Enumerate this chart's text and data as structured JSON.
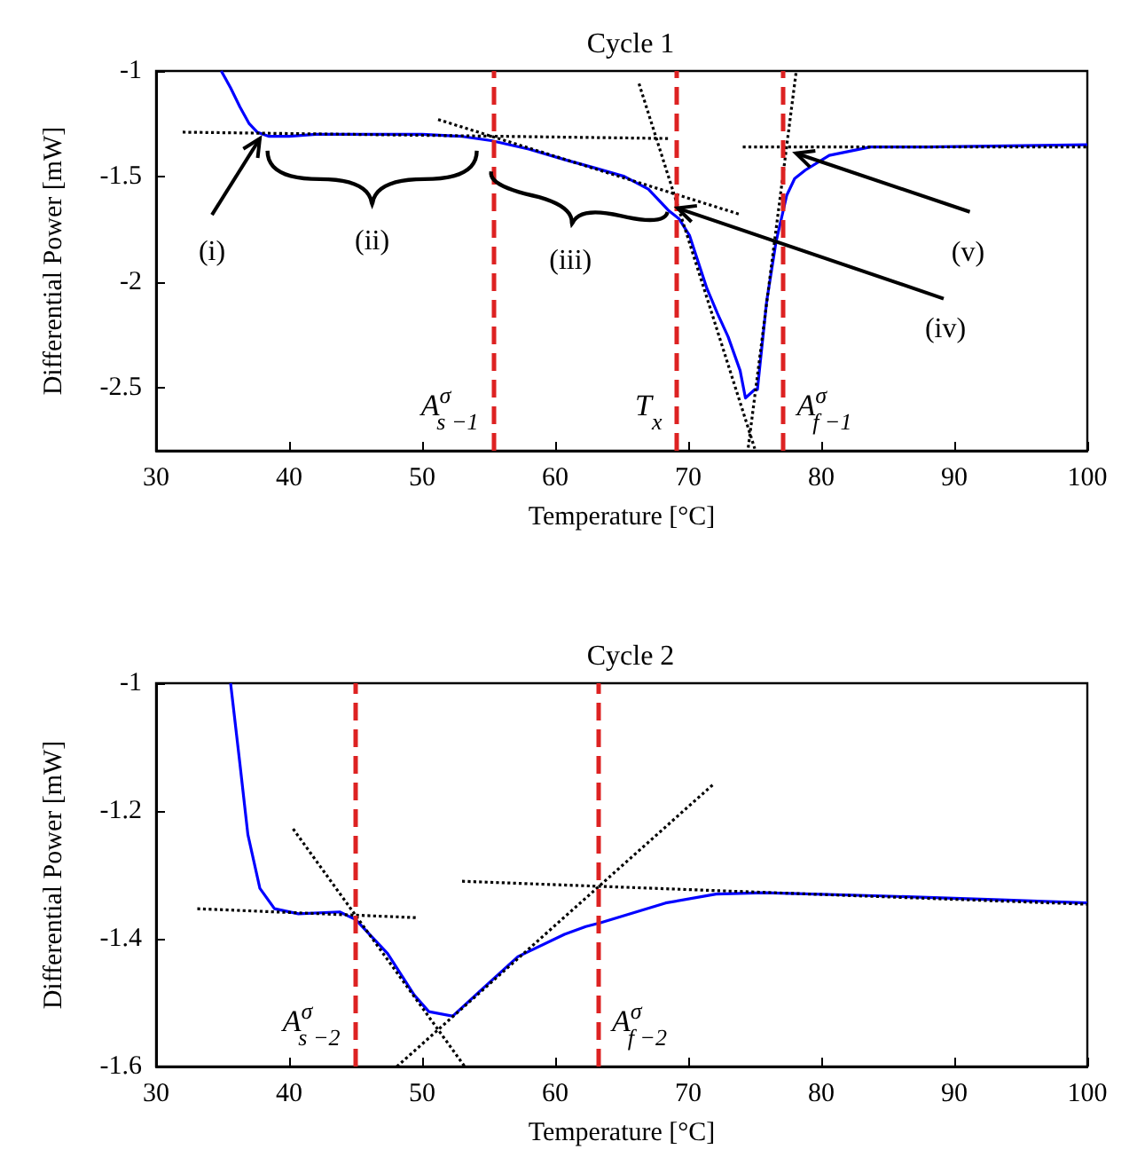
{
  "chart_data": [
    {
      "type": "line",
      "title": "Cycle 1",
      "xlabel": "Temperature [°C]",
      "ylabel": "Differential Power [mW]",
      "xlim": [
        30,
        100
      ],
      "xticks": [
        30,
        40,
        50,
        60,
        70,
        80,
        90,
        100
      ],
      "ylim": [
        -2.8,
        -1
      ],
      "yticks": [
        -1,
        -1.5,
        -2,
        -2.5
      ],
      "series": [
        {
          "color": "#0000ff",
          "x": [
            34.9,
            35.6,
            36.3,
            37.0,
            37.6,
            38.5,
            40,
            42,
            45,
            50,
            53,
            55.2,
            58,
            60.7,
            63,
            65.2,
            67,
            68.5,
            69.3,
            70.1,
            71.4,
            72.2,
            73.0,
            73.9,
            74.3,
            75.0,
            75.2,
            75.9,
            76.6,
            77.4,
            78.0,
            78.8,
            80.6,
            83.7,
            88,
            100
          ],
          "values": [
            -1.0,
            -1.08,
            -1.17,
            -1.25,
            -1.29,
            -1.31,
            -1.31,
            -1.3,
            -1.3,
            -1.3,
            -1.31,
            -1.33,
            -1.37,
            -1.42,
            -1.46,
            -1.5,
            -1.56,
            -1.66,
            -1.7,
            -1.78,
            -2.03,
            -2.15,
            -2.26,
            -2.42,
            -2.55,
            -2.51,
            -2.51,
            -2.09,
            -1.81,
            -1.59,
            -1.51,
            -1.47,
            -1.4,
            -1.36,
            -1.36,
            -1.35
          ]
        },
        {
          "type": "line",
          "color": "#000000",
          "line_style": "dotted",
          "x": [
            32.0,
            68.5
          ],
          "values": [
            -1.29,
            -1.32
          ]
        },
        {
          "type": "line",
          "color": "#000000",
          "line_style": "dotted",
          "x": [
            51.2,
            73.9
          ],
          "values": [
            -1.23,
            -1.68
          ]
        },
        {
          "type": "line",
          "color": "#000000",
          "line_style": "dotted",
          "x": [
            66.3,
            75.0
          ],
          "values": [
            -1.06,
            -2.79
          ]
        },
        {
          "type": "line",
          "color": "#000000",
          "line_style": "dotted",
          "x": [
            78.1,
            74.5
          ],
          "values": [
            -1.01,
            -2.79
          ]
        },
        {
          "type": "line",
          "color": "#000000",
          "line_style": "dotted",
          "x": [
            74.1,
            100
          ],
          "values": [
            -1.36,
            -1.36
          ]
        }
      ],
      "ref_lines": [
        {
          "axis": "x",
          "value": 55.3,
          "label": "A$^{σ}$$_{s −1}$",
          "color": "#dd2222",
          "line_style": "dashed"
        },
        {
          "axis": "x",
          "value": 69.1,
          "label": "T$_{x}$",
          "color": "#dd2222",
          "line_style": "dashed"
        },
        {
          "axis": "x",
          "value": 77.1,
          "label": "A$^{σ}$$_{f −1}$",
          "color": "#dd2222",
          "line_style": "dashed"
        }
      ],
      "annotations": [
        {
          "text": "(i)",
          "x": 37.8,
          "y": -1.32
        },
        "(ii)",
        "(iii)",
        {
          "text": "(iv)",
          "x": 69.2,
          "y": -1.65
        },
        {
          "text": "(v)",
          "x": 78.1,
          "y": -1.39
        }
      ]
    },
    {
      "type": "line",
      "title": "Cycle 2",
      "xlabel": "Temperature [°C]",
      "ylabel": "Differential Power [mW]",
      "xlim": [
        30,
        100
      ],
      "xticks": [
        30,
        40,
        50,
        60,
        70,
        80,
        90,
        100
      ],
      "ylim": [
        -1.6,
        -1
      ],
      "yticks": [
        -1,
        -1.2,
        -1.4,
        -1.6
      ],
      "series": [
        {
          "color": "#0000ff",
          "x": [
            35.6,
            36.3,
            36.9,
            37.8,
            38.9,
            40.7,
            43.8,
            45.0,
            47.4,
            49.4,
            50.5,
            52.3,
            54.5,
            57.2,
            60.7,
            62.3,
            63.4,
            68.3,
            72.1,
            75.7,
            84.6,
            93.5,
            100
          ],
          "values": [
            -1.0,
            -1.126,
            -1.237,
            -1.321,
            -1.353,
            -1.361,
            -1.358,
            -1.37,
            -1.423,
            -1.488,
            -1.514,
            -1.521,
            -1.479,
            -1.428,
            -1.393,
            -1.381,
            -1.375,
            -1.344,
            -1.33,
            -1.328,
            -1.333,
            -1.339,
            -1.344
          ]
        },
        {
          "type": "line",
          "color": "#000000",
          "line_style": "dotted",
          "x": [
            33.1,
            49.6
          ],
          "values": [
            -1.353,
            -1.367
          ]
        },
        {
          "type": "line",
          "color": "#000000",
          "line_style": "dotted",
          "x": [
            40.3,
            53.2
          ],
          "values": [
            -1.228,
            -1.6
          ]
        },
        {
          "type": "line",
          "color": "#000000",
          "line_style": "dotted",
          "x": [
            48.1,
            71.9
          ],
          "values": [
            -1.6,
            -1.158
          ]
        },
        {
          "type": "line",
          "color": "#000000",
          "line_style": "dotted",
          "x": [
            53.0,
            100
          ],
          "values": [
            -1.31,
            -1.346
          ]
        }
      ],
      "ref_lines": [
        {
          "axis": "x",
          "value": 44.9,
          "label": "A$^{σ}$$_{s −2}$",
          "color": "#dd2222",
          "line_style": "dashed"
        },
        {
          "axis": "x",
          "value": 63.2,
          "label": "A$^{σ}$$_{f −2}$",
          "color": "#dd2222",
          "line_style": "dashed"
        }
      ]
    }
  ]
}
